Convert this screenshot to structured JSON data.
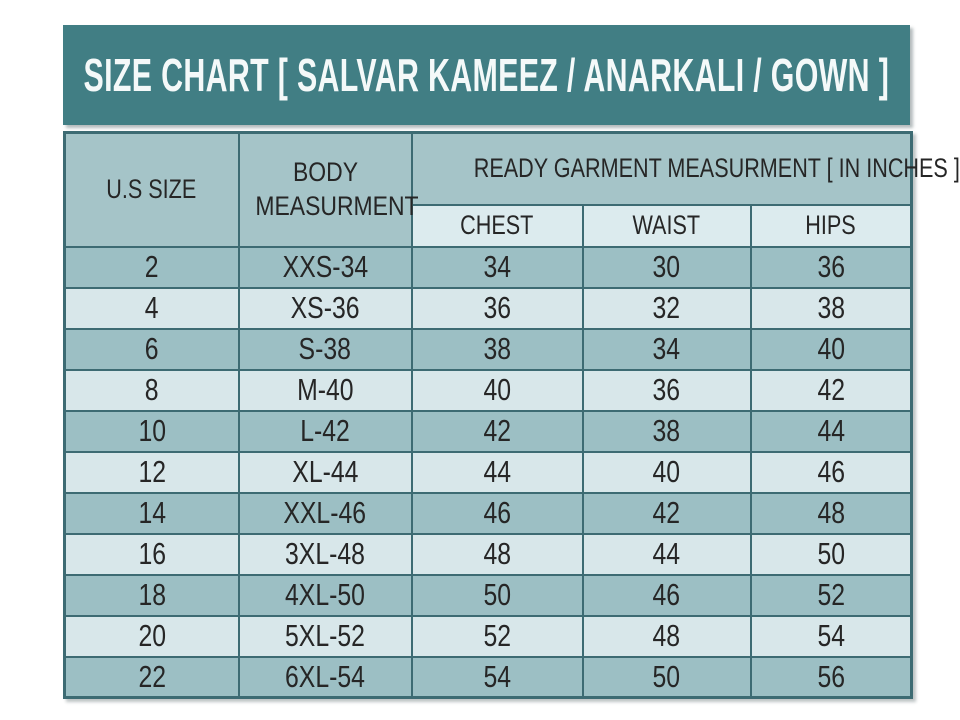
{
  "page_title": "SIZE CHART [ SALVAR KAMEEZ / ANARKALI / GOWN ]",
  "chart_data": {
    "type": "table",
    "title": "SIZE CHART [ SALVAR KAMEEZ / ANARKALI / GOWN ]",
    "column_group_header": "READY GARMENT MEASURMENT [ IN INCHES ]",
    "columns": [
      "U.S SIZE",
      "BODY MEASURMENT",
      "CHEST",
      "WAIST",
      "HIPS"
    ],
    "rows": [
      [
        2,
        "XXS-34",
        34,
        30,
        36
      ],
      [
        4,
        "XS-36",
        36,
        32,
        38
      ],
      [
        6,
        "S-38",
        38,
        34,
        40
      ],
      [
        8,
        "M-40",
        40,
        36,
        42
      ],
      [
        10,
        "L-42",
        42,
        38,
        44
      ],
      [
        12,
        "XL-44",
        44,
        40,
        46
      ],
      [
        14,
        "XXL-46",
        46,
        42,
        48
      ],
      [
        16,
        "3XL-48",
        48,
        44,
        50
      ],
      [
        18,
        "4XL-50",
        50,
        46,
        52
      ],
      [
        20,
        "5XL-52",
        52,
        48,
        54
      ],
      [
        22,
        "6XL-54",
        54,
        50,
        56
      ]
    ],
    "row_striping": "first row dark, alternating dark/light",
    "layout": "columns 1-2 span both header rows; CHEST/WAIST/HIPS sit under the group header"
  },
  "colors": {
    "band": "#417e84",
    "header_bg": "#a5c4c8",
    "subheader_bg": "#dcebee",
    "row_dark": "#9cbfc4",
    "row_light": "#d8e7ea",
    "border": "#3d6b73",
    "text": "#262626",
    "title_text": "#f4f9f9",
    "page_bg": "#ffffff"
  }
}
